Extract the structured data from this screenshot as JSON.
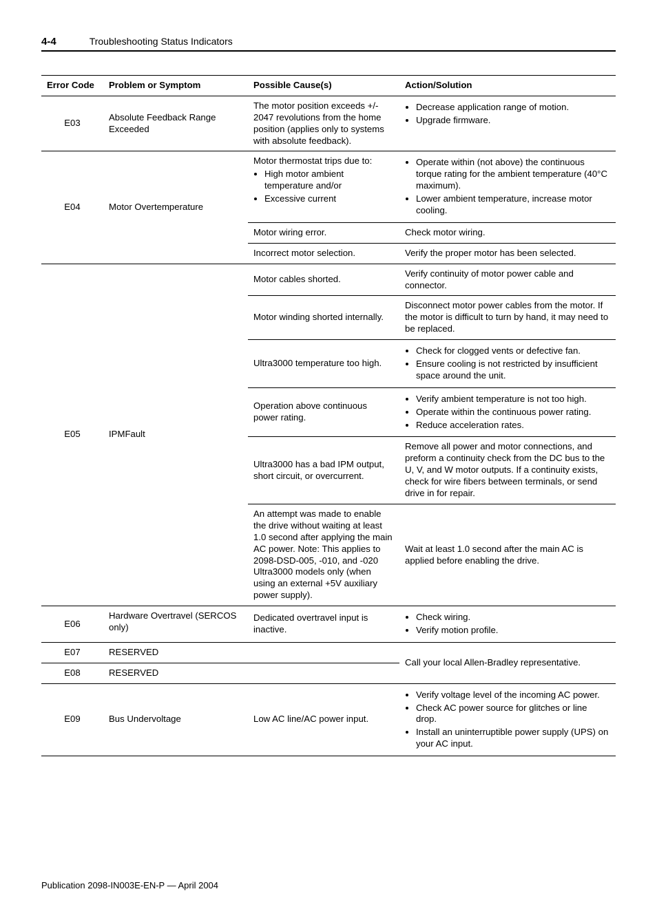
{
  "header": {
    "page": "4-4",
    "title": "Troubleshooting Status Indicators"
  },
  "table": {
    "columns": {
      "code": "Error Code",
      "problem": "Problem or Symptom",
      "cause": "Possible Cause(s)",
      "action": "Action/Solution"
    },
    "e03": {
      "code": "E03",
      "problem": "Absolute Feedback Range Exceeded",
      "cause": "The motor position exceeds +/- 2047 revolutions from the home position (applies only to systems with absolute feedback).",
      "action1": "Decrease application range of motion.",
      "action2": "Upgrade firmware."
    },
    "e04": {
      "code": "E04",
      "problem": "Motor Overtemperature",
      "cause1_intro": "Motor thermostat trips due to:",
      "cause1_b1": "High motor ambient temperature and/or",
      "cause1_b2": "Excessive current",
      "act1_b1": "Operate within (not above) the continuous torque rating for the ambient temperature (40°C maximum).",
      "act1_b2": "Lower ambient temperature, increase motor cooling.",
      "cause2": "Motor wiring error.",
      "act2": "Check motor wiring.",
      "cause3": "Incorrect motor selection.",
      "act3": "Verify the proper motor has been selected."
    },
    "e05": {
      "code": "E05",
      "problem": "IPMFault",
      "cause1": "Motor cables shorted.",
      "act1": "Verify continuity of motor power cable and connector.",
      "cause2": "Motor winding shorted internally.",
      "act2": "Disconnect motor power cables from the motor. If the motor is difficult to turn by hand, it may need to be replaced.",
      "cause3": "Ultra3000 temperature too high.",
      "act3_b1": "Check for clogged vents or defective fan.",
      "act3_b2": "Ensure cooling is not restricted by insufficient space around the unit.",
      "cause4": "Operation above continuous power rating.",
      "act4_b1": "Verify ambient temperature is not too high.",
      "act4_b2": "Operate within the continuous power rating.",
      "act4_b3": "Reduce acceleration rates.",
      "cause5": "Ultra3000 has a bad IPM output, short circuit, or overcurrent.",
      "act5": "Remove all power and motor connections, and preform a continuity check from the DC bus to the U, V, and W motor outputs. If a continuity exists, check for wire fibers between terminals, or send drive in for repair.",
      "cause6": "An attempt was made to enable the drive without waiting at least 1.0 second after applying the main AC power. Note: This applies to 2098-DSD-005, -010, and -020 Ultra3000 models only (when using an external +5V auxiliary power supply).",
      "act6": "Wait at least 1.0 second after the main AC is applied before enabling the drive."
    },
    "e06": {
      "code": "E06",
      "problem": "Hardware Overtravel (SERCOS only)",
      "cause": "Dedicated overtravel input is inactive.",
      "act_b1": "Check wiring.",
      "act_b2": "Verify motion profile."
    },
    "e07": {
      "code": "E07",
      "problem": "RESERVED"
    },
    "e08": {
      "code": "E08",
      "problem": "RESERVED"
    },
    "e0708_action": "Call your local Allen-Bradley representative.",
    "e09": {
      "code": "E09",
      "problem": "Bus Undervoltage",
      "cause": "Low AC line/AC power input.",
      "act_b1": "Verify voltage level of the incoming AC power.",
      "act_b2": "Check AC power source for glitches or line drop.",
      "act_b3": "Install an uninterruptible power supply (UPS) on your AC input."
    }
  },
  "footer": "Publication 2098-IN003E-EN-P — April 2004"
}
